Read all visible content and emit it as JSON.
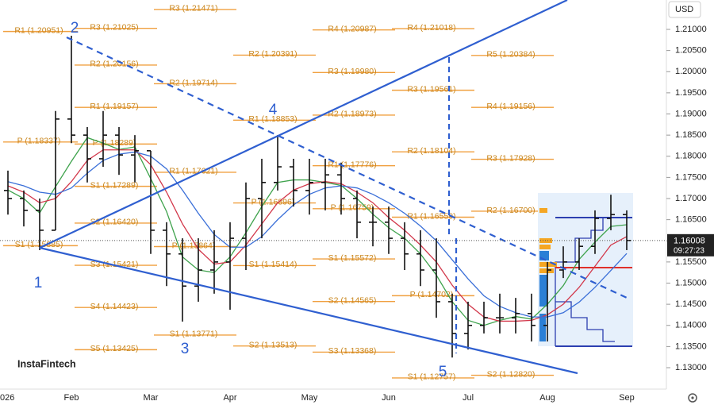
{
  "chart_data": {
    "type": "ohlc",
    "currency": "USD",
    "watermark": "InstaFintech",
    "clock": "09:27:23",
    "categories": [
      "026",
      null,
      null,
      null,
      "Feb",
      null,
      null,
      null,
      null,
      "Mar",
      null,
      null,
      null,
      null,
      "Apr",
      null,
      null,
      null,
      null,
      "May",
      null,
      null,
      null,
      null,
      "Jun",
      null,
      null,
      null,
      null,
      "Jul",
      null,
      null,
      null,
      null,
      "Aug",
      null,
      null,
      null,
      null,
      "Sep",
      null,
      null
    ],
    "open": [
      1.1719,
      1.17,
      1.1672,
      1.1625,
      1.1888,
      1.185,
      1.1794,
      1.185,
      1.1803,
      1.1813,
      1.1625,
      1.1569,
      1.1493,
      1.1531,
      1.155,
      1.1606,
      1.17,
      1.1738,
      1.1775,
      1.1719,
      1.1738,
      1.1756,
      1.17,
      1.1644,
      1.1644,
      1.1606,
      1.1569,
      1.1531,
      1.1456,
      1.1381,
      1.14,
      1.1418,
      1.1418,
      1.1428,
      1.14,
      1.1531,
      1.155,
      1.1587,
      1.1653,
      1.1662,
      null,
      null
    ],
    "high": [
      1.1766,
      1.1719,
      1.17,
      1.1907,
      1.2085,
      1.1869,
      1.1907,
      1.1869,
      1.185,
      1.1813,
      1.1644,
      1.1606,
      1.1606,
      1.1625,
      1.1644,
      1.1738,
      1.1794,
      1.185,
      1.1794,
      1.1794,
      1.1794,
      1.1785,
      1.1719,
      1.1681,
      1.1681,
      1.1644,
      1.1625,
      1.1606,
      1.1475,
      1.1456,
      1.1456,
      1.1475,
      1.1465,
      1.1475,
      1.155,
      1.1587,
      1.1606,
      1.1672,
      1.1709,
      1.1672,
      null,
      null
    ],
    "low": [
      1.1662,
      1.1634,
      1.1578,
      1.1625,
      1.1831,
      1.1738,
      1.1775,
      1.1756,
      1.1738,
      1.1569,
      1.1493,
      1.1409,
      1.1456,
      1.1475,
      1.1437,
      1.1531,
      1.1606,
      1.1719,
      1.1681,
      1.1662,
      1.1672,
      1.1662,
      1.1606,
      1.1587,
      1.1569,
      1.1531,
      1.1493,
      1.1418,
      1.1324,
      1.1343,
      1.1381,
      1.1381,
      1.1381,
      1.1362,
      1.1362,
      1.1512,
      1.1531,
      1.1569,
      1.1625,
      1.1578,
      null,
      null
    ],
    "close": [
      1.17,
      1.1672,
      1.1625,
      1.1888,
      1.185,
      1.1794,
      1.185,
      1.1803,
      1.1813,
      1.1625,
      1.1569,
      1.1493,
      1.1531,
      1.155,
      1.1606,
      1.17,
      1.1738,
      1.1775,
      1.1719,
      1.1738,
      1.1756,
      1.17,
      1.1644,
      1.1644,
      1.1606,
      1.1569,
      1.1531,
      1.1456,
      1.1381,
      1.14,
      1.1418,
      1.1418,
      1.1428,
      1.14,
      1.1531,
      1.155,
      1.1587,
      1.1653,
      1.1662,
      1.16008,
      null,
      null
    ],
    "bar_color": "#111111",
    "series": [
      {
        "color": "#3fa34d",
        "values": [
          1.172,
          1.17,
          1.1666,
          1.1728,
          1.1788,
          1.1844,
          1.1831,
          1.1816,
          1.1822,
          1.1747,
          1.1669,
          1.1562,
          1.1531,
          1.1525,
          1.1562,
          1.1619,
          1.1681,
          1.1738,
          1.1744,
          1.1744,
          1.1738,
          1.1731,
          1.17,
          1.1663,
          1.1631,
          1.1606,
          1.1569,
          1.1519,
          1.1456,
          1.1412,
          1.14,
          1.1412,
          1.1421,
          1.1415,
          1.145,
          1.1494,
          1.1556,
          1.1597,
          1.1634,
          1.1638,
          null,
          null
        ]
      },
      {
        "color": "#d2374a",
        "values": [
          1.173,
          1.1715,
          1.169,
          1.17,
          1.174,
          1.179,
          1.1815,
          1.1815,
          1.1815,
          1.178,
          1.1715,
          1.164,
          1.158,
          1.1545,
          1.155,
          1.159,
          1.164,
          1.169,
          1.172,
          1.1735,
          1.174,
          1.1735,
          1.1715,
          1.169,
          1.1655,
          1.1625,
          1.159,
          1.155,
          1.1495,
          1.145,
          1.142,
          1.141,
          1.141,
          1.1412,
          1.1425,
          1.145,
          1.149,
          1.154,
          1.159,
          1.161,
          null,
          null
        ]
      },
      {
        "color": "#3a6fd8",
        "values": [
          1.174,
          1.173,
          1.1715,
          1.171,
          1.1725,
          1.176,
          1.179,
          1.1805,
          1.181,
          1.18,
          1.177,
          1.172,
          1.1665,
          1.1615,
          1.1585,
          1.1585,
          1.161,
          1.165,
          1.1685,
          1.171,
          1.1725,
          1.173,
          1.1725,
          1.171,
          1.169,
          1.1665,
          1.1635,
          1.16,
          1.1555,
          1.151,
          1.147,
          1.1445,
          1.143,
          1.142,
          1.142,
          1.143,
          1.1455,
          1.149,
          1.153,
          1.157,
          null,
          null
        ]
      }
    ],
    "ylim": [
      1.12493,
      1.21695
    ],
    "yticks": [
      {
        "value": 1.13,
        "label": "1.13000"
      },
      {
        "value": 1.135,
        "label": "1.13500"
      },
      {
        "value": 1.14,
        "label": "1.14000"
      },
      {
        "value": 1.145,
        "label": "1.14500"
      },
      {
        "value": 1.15,
        "label": "1.15000"
      },
      {
        "value": 1.155,
        "label": "1.15500"
      },
      {
        "value": 1.16,
        "label": "1.16000"
      },
      {
        "value": 1.165,
        "label": "1.16500"
      },
      {
        "value": 1.17,
        "label": "1.17000"
      },
      {
        "value": 1.175,
        "label": "1.17500"
      },
      {
        "value": 1.18,
        "label": "1.18000"
      },
      {
        "value": 1.185,
        "label": "1.18500"
      },
      {
        "value": 1.19,
        "label": "1.19000"
      },
      {
        "value": 1.195,
        "label": "1.19500"
      },
      {
        "value": 1.2,
        "label": "1.20000"
      },
      {
        "value": 1.205,
        "label": "1.20500"
      },
      {
        "value": 1.21,
        "label": "1.21000"
      }
    ],
    "pivot_color": "#f0a040",
    "pivot_levels": [
      [
        {
          "label": "R1 (1.20951)",
          "value": 1.20951
        },
        {
          "label": "P (1.18337)",
          "value": 1.18337
        },
        {
          "label": "S1 (1.15885)",
          "value": 1.15885
        }
      ],
      [
        {
          "label": "R3 (1.21025)",
          "value": 1.21025
        },
        {
          "label": "R2 (1.20156)",
          "value": 1.20156
        },
        {
          "label": "R1 (1.19157)",
          "value": 1.19157
        },
        {
          "label": "P (1.18289)",
          "value": 1.18289
        },
        {
          "label": "S1 (1.17289)",
          "value": 1.17289
        },
        {
          "label": "S2 (1.16420)",
          "value": 1.1642
        },
        {
          "label": "S3 (1.15421)",
          "value": 1.15421
        },
        {
          "label": "S4 (1.14423)",
          "value": 1.14423
        },
        {
          "label": "S5 (1.13425)",
          "value": 1.13425
        }
      ],
      [
        {
          "label": "R3 (1.21471)",
          "value": 1.21471
        },
        {
          "label": "R2 (1.19714)",
          "value": 1.19714
        },
        {
          "label": "R1 (1.17621)",
          "value": 1.17621
        },
        {
          "label": "P (1.15864)",
          "value": 1.15864
        },
        {
          "label": "S1 (1.13771)",
          "value": 1.13771
        }
      ],
      [
        {
          "label": "R2 (1.20391)",
          "value": 1.20391
        },
        {
          "label": "R1 (1.18853)",
          "value": 1.18853
        },
        {
          "label": "P (1.16896)",
          "value": 1.16896
        },
        {
          "label": "S1 (1.15414)",
          "value": 1.15414
        },
        {
          "label": "S2 (1.13513)",
          "value": 1.13513
        }
      ],
      [
        {
          "label": "R4 (1.20987)",
          "value": 1.20987
        },
        {
          "label": "R3 (1.19980)",
          "value": 1.1998
        },
        {
          "label": "R2 (1.18973)",
          "value": 1.18973
        },
        {
          "label": "R1 (1.17776)",
          "value": 1.17776
        },
        {
          "label": "P (1.16759)",
          "value": 1.16759
        },
        {
          "label": "S1 (1.15572)",
          "value": 1.15572
        },
        {
          "label": "S2 (1.14565)",
          "value": 1.14565
        },
        {
          "label": "S3 (1.13368)",
          "value": 1.13368
        }
      ],
      [
        {
          "label": "R4 (1.21018)",
          "value": 1.21018
        },
        {
          "label": "R3 (1.19561)",
          "value": 1.19561
        },
        {
          "label": "R2 (1.18104)",
          "value": 1.18104
        },
        {
          "label": "R1 (1.16559)",
          "value": 1.16559
        },
        {
          "label": "P (1.14702)",
          "value": 1.14702
        },
        {
          "label": "S1 (1.12757)",
          "value": 1.12757
        }
      ],
      [
        {
          "label": "R5 (1.20384)",
          "value": 1.20384
        },
        {
          "label": "R4 (1.19156)",
          "value": 1.19156
        },
        {
          "label": "R3 (1.17928)",
          "value": 1.17928
        },
        {
          "label": "R2 (1.16700)",
          "value": 1.167
        },
        {
          "label": "S2 (1.12820)",
          "value": 1.1282
        }
      ]
    ],
    "wave_labels": [
      "1",
      "2",
      "3",
      "4",
      "5"
    ]
  }
}
